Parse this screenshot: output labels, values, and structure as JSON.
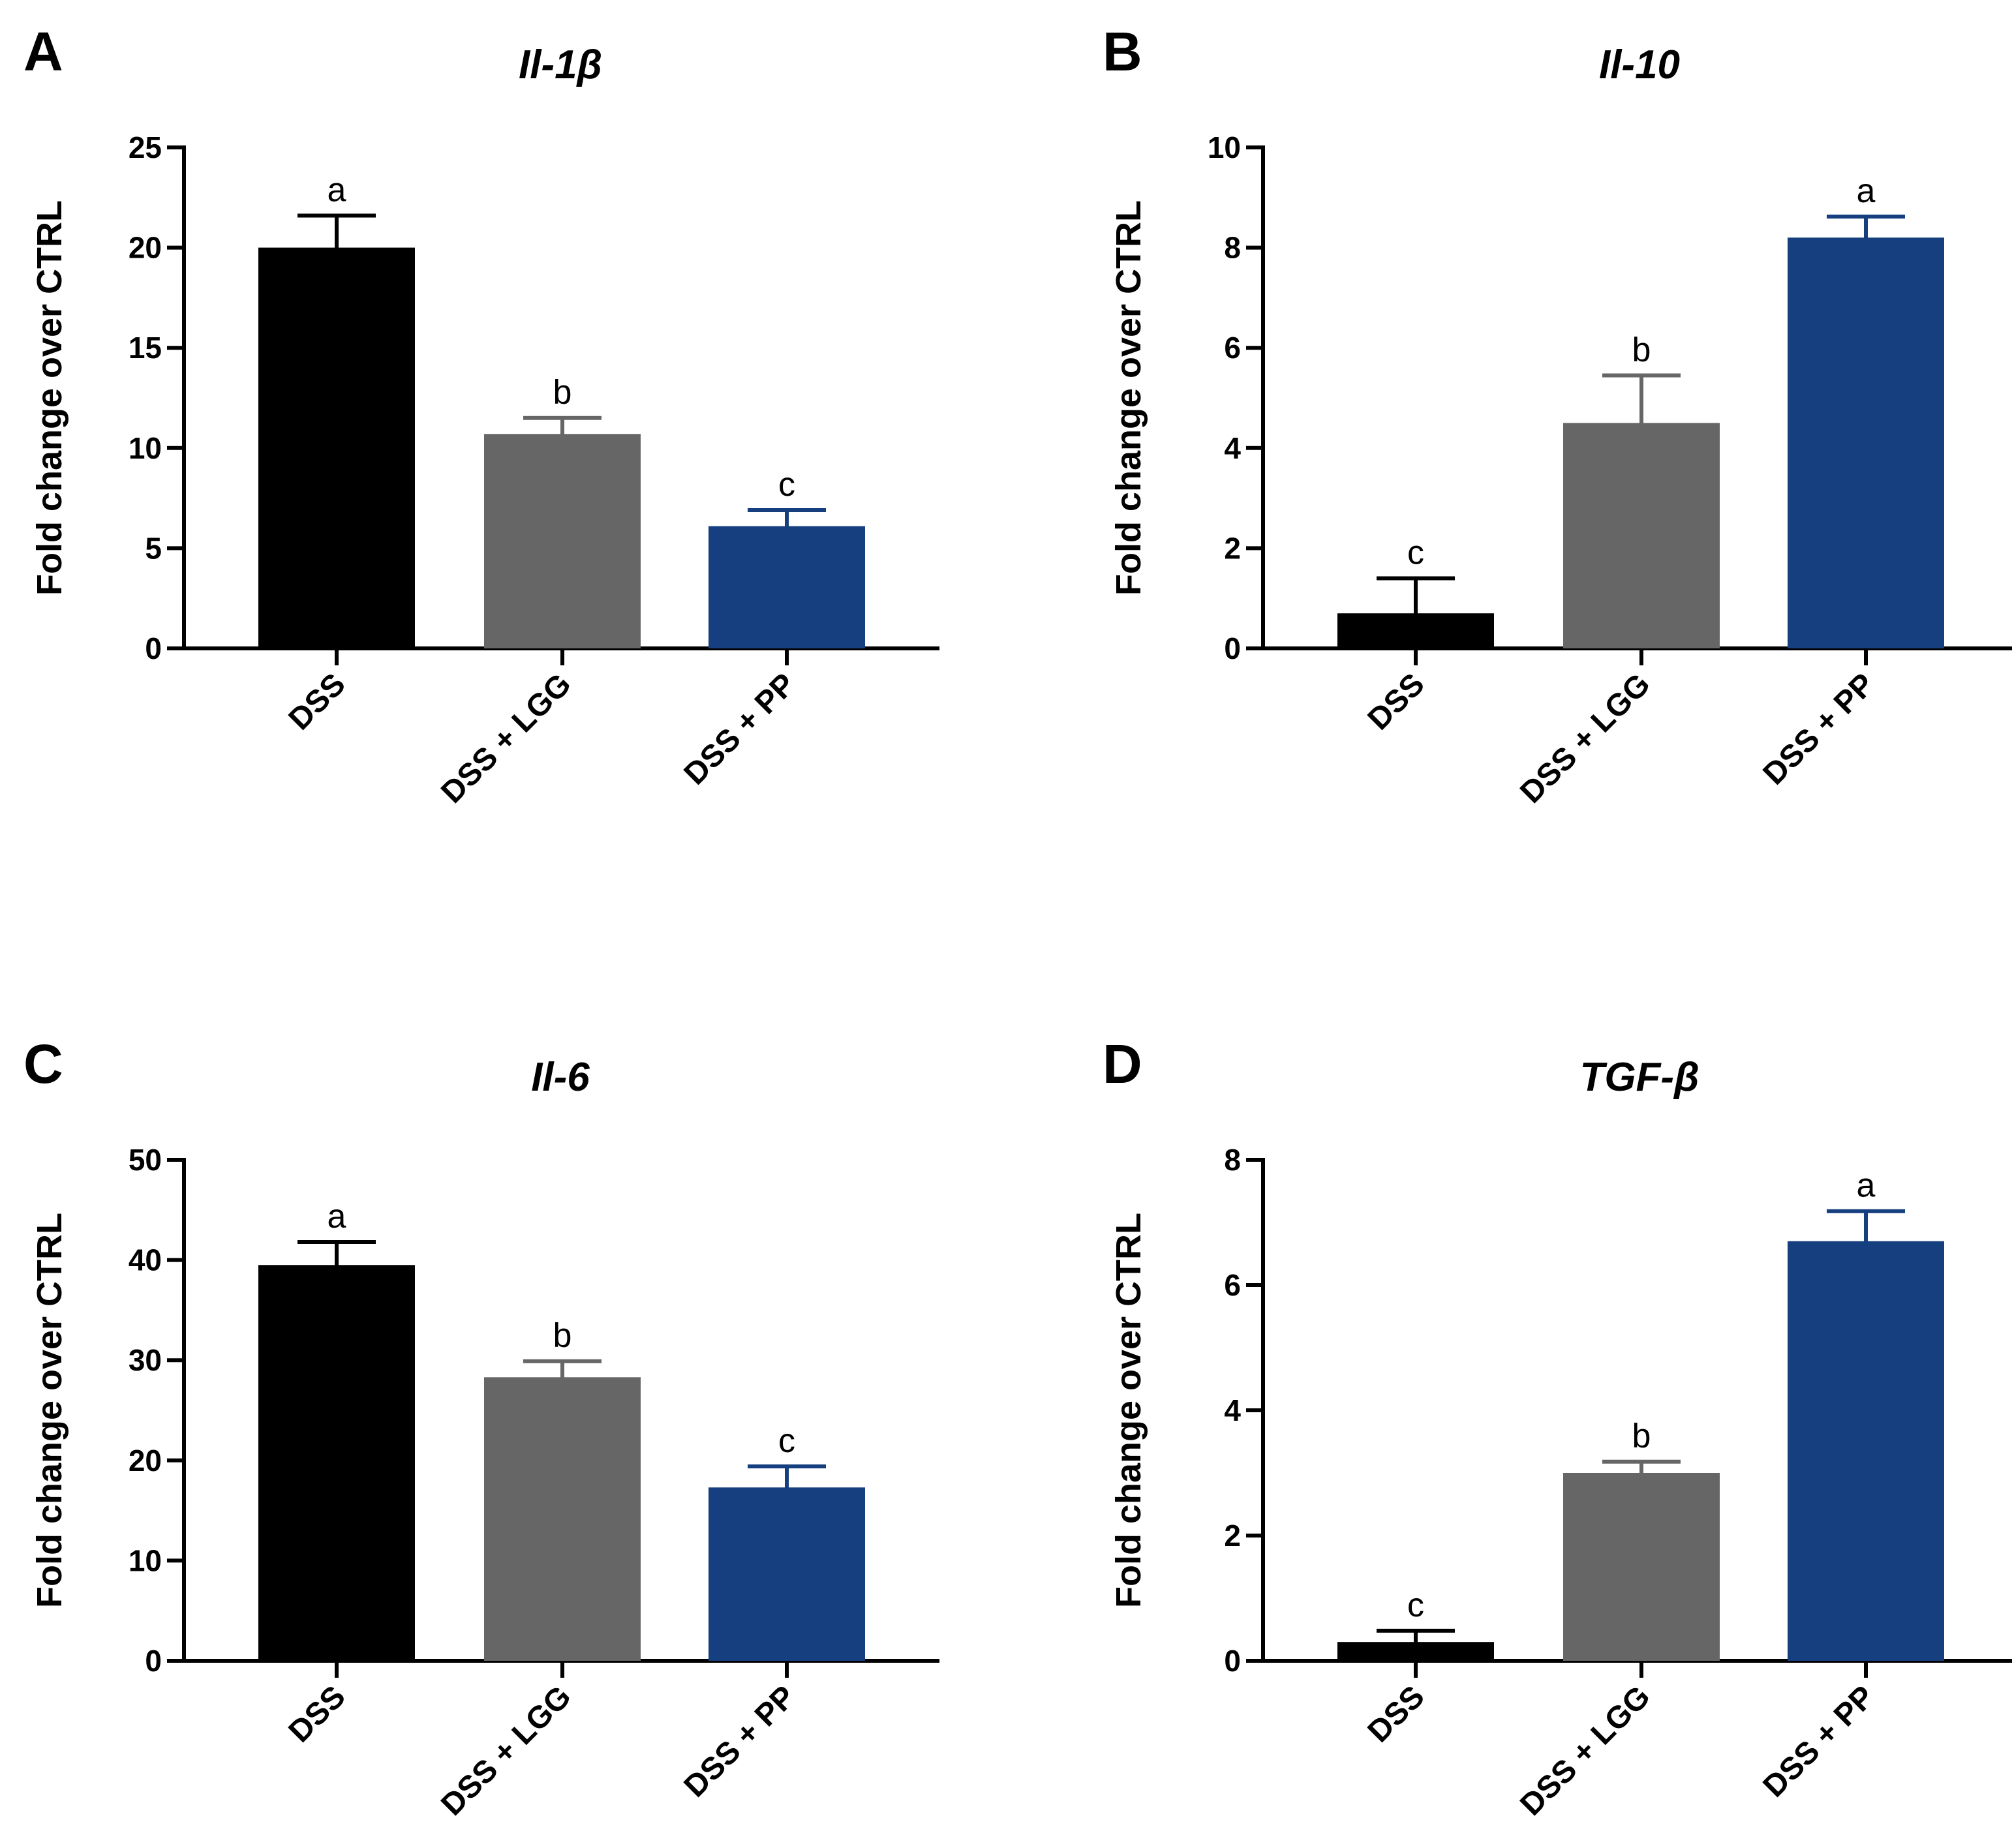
{
  "colors": {
    "DSS": "#000000",
    "DSS + LGG": "#666666",
    "DSS + PP": "#153f7f"
  },
  "chart_data": [
    {
      "type": "bar",
      "panel": "A",
      "title": "Il-1β",
      "ylabel": "Fold change over CTRL",
      "categories": [
        "DSS",
        "DSS + LGG",
        "DSS + PP"
      ],
      "values": [
        20,
        10.7,
        6.1
      ],
      "errors": [
        1.6,
        0.8,
        0.8
      ],
      "significance": [
        "a",
        "b",
        "c"
      ],
      "ylim": [
        0,
        25
      ],
      "yticks": [
        0,
        5,
        10,
        15,
        20,
        25
      ]
    },
    {
      "type": "bar",
      "panel": "B",
      "title": "Il-10",
      "ylabel": "Fold change over CTRL",
      "categories": [
        "DSS",
        "DSS + LGG",
        "DSS + PP"
      ],
      "values": [
        0.7,
        4.5,
        8.2
      ],
      "errors": [
        0.7,
        0.95,
        0.42
      ],
      "significance": [
        "c",
        "b",
        "a"
      ],
      "ylim": [
        0,
        10
      ],
      "yticks": [
        0,
        2,
        4,
        6,
        8,
        10
      ]
    },
    {
      "type": "bar",
      "panel": "C",
      "title": "Il-6",
      "ylabel": "Fold change over CTRL",
      "categories": [
        "DSS",
        "DSS + LGG",
        "DSS + PP"
      ],
      "values": [
        39.5,
        28.3,
        17.3
      ],
      "errors": [
        2.3,
        1.6,
        2.1
      ],
      "significance": [
        "a",
        "b",
        "c"
      ],
      "ylim": [
        0,
        50
      ],
      "yticks": [
        0,
        10,
        20,
        30,
        40,
        50
      ]
    },
    {
      "type": "bar",
      "panel": "D",
      "title": "TGF-β",
      "ylabel": "Fold change over CTRL",
      "categories": [
        "DSS",
        "DSS + LGG",
        "DSS + PP"
      ],
      "values": [
        0.3,
        3.0,
        6.7
      ],
      "errors": [
        0.18,
        0.18,
        0.48
      ],
      "significance": [
        "c",
        "b",
        "a"
      ],
      "ylim": [
        0,
        8
      ],
      "yticks": [
        0,
        2,
        4,
        6,
        8
      ]
    }
  ]
}
